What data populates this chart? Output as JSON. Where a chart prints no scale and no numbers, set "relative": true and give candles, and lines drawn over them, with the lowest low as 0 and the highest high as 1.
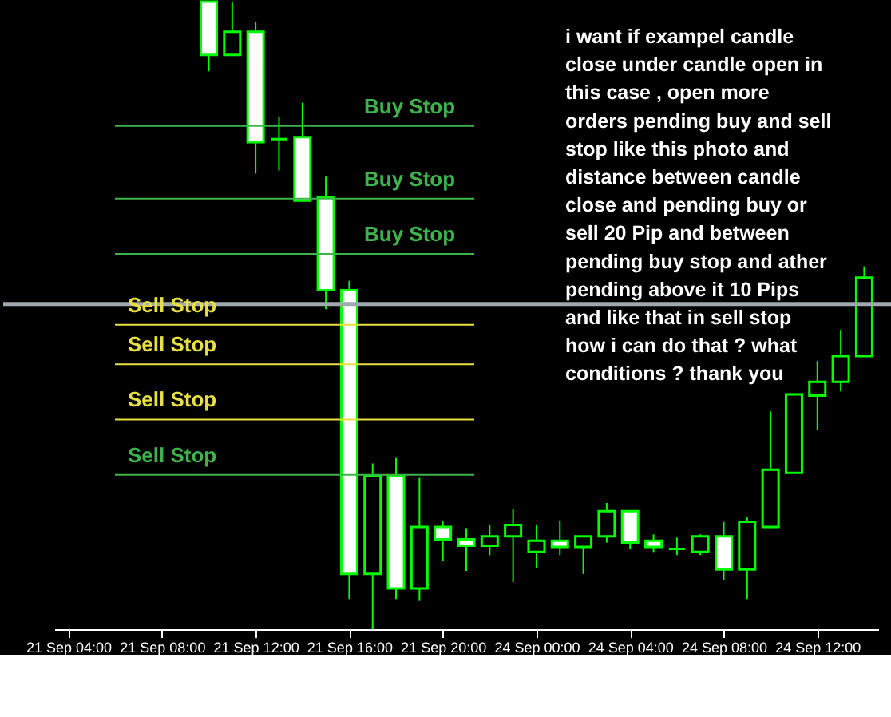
{
  "chart_data": {
    "type": "candlestick",
    "relative": true,
    "color": "#00ff00",
    "categories": [
      "21 Sep 04:00",
      null,
      null,
      null,
      "21 Sep 08:00",
      null,
      null,
      null,
      "21 Sep 12:00",
      null,
      null,
      null,
      "21 Sep 16:00",
      null,
      null,
      null,
      "21 Sep 20:00",
      null,
      null,
      null,
      "24 Sep 00:00",
      null,
      null,
      null,
      "24 Sep 04:00",
      null,
      null,
      null,
      "24 Sep 08:00",
      null,
      null,
      null,
      "24 Sep 12:00",
      null,
      null
    ],
    "ohlc": [
      null,
      null,
      null,
      null,
      null,
      null,
      [
        1.0,
        1.0,
        0.889,
        0.915
      ],
      [
        0.915,
        1.0,
        0.915,
        0.952
      ],
      [
        0.952,
        0.967,
        0.726,
        0.776
      ],
      [
        0.781,
        0.817,
        0.731,
        0.781
      ],
      [
        0.784,
        0.839,
        0.683,
        0.683
      ],
      [
        0.688,
        0.721,
        0.51,
        0.54
      ],
      [
        0.54,
        0.555,
        0.048,
        0.088
      ],
      [
        0.088,
        0.264,
        0.0,
        0.244
      ],
      [
        0.244,
        0.274,
        0.048,
        0.065
      ],
      [
        0.065,
        0.241,
        0.045,
        0.163
      ],
      [
        0.163,
        0.173,
        0.108,
        0.143
      ],
      [
        0.143,
        0.161,
        0.093,
        0.133
      ],
      [
        0.133,
        0.166,
        0.118,
        0.148
      ],
      [
        0.148,
        0.191,
        0.075,
        0.166
      ],
      [
        0.123,
        0.166,
        0.098,
        0.141
      ],
      [
        0.141,
        0.173,
        0.118,
        0.131
      ],
      [
        0.131,
        0.148,
        0.088,
        0.148
      ],
      [
        0.148,
        0.201,
        0.138,
        0.188
      ],
      [
        0.188,
        0.188,
        0.128,
        0.138
      ],
      [
        0.141,
        0.151,
        0.123,
        0.131
      ],
      [
        0.128,
        0.146,
        0.118,
        0.128
      ],
      [
        0.123,
        0.151,
        0.118,
        0.148
      ],
      [
        0.148,
        0.171,
        0.078,
        0.095
      ],
      [
        0.095,
        0.178,
        0.048,
        0.171
      ],
      [
        0.163,
        0.347,
        0.161,
        0.254
      ],
      [
        0.249,
        0.374,
        0.249,
        0.374
      ],
      [
        0.372,
        0.427,
        0.317,
        0.394
      ],
      [
        0.394,
        0.477,
        0.379,
        0.435
      ],
      [
        0.435,
        0.578,
        0.435,
        0.56
      ]
    ],
    "ref_lines": [
      {
        "axis": "y",
        "value": 0.802,
        "label": "Buy Stop",
        "color": "#3cb44b"
      },
      {
        "axis": "y",
        "value": 0.686,
        "label": "Buy Stop",
        "color": "#3cb44b"
      },
      {
        "axis": "y",
        "value": 0.598,
        "label": "Buy Stop",
        "color": "#3cb44b"
      },
      {
        "axis": "y",
        "value": 0.518,
        "color": "#a0a8b0"
      },
      {
        "axis": "y",
        "value": 0.485,
        "label": "Sell Stop",
        "color": "#e8e040"
      },
      {
        "axis": "y",
        "value": 0.422,
        "label": "Sell Stop",
        "color": "#e8e040"
      },
      {
        "axis": "y",
        "value": 0.334,
        "label": "Sell Stop",
        "color": "#e8e040"
      },
      {
        "axis": "y",
        "value": 0.246,
        "label": "Sell Stop",
        "color": "#3cb44b"
      }
    ],
    "annotations": [
      "i want if exampel candle",
      "close under candle open in",
      "this case , open more",
      "orders pending buy and sell",
      "stop  like this photo and",
      "distance between candle",
      "close and pending buy or",
      "sell  20 Pip and between",
      "pending buy stop and ather",
      "pending above it 10 Pips",
      "and like that in sell stop",
      "how i can do that ? what",
      "conditions ? thank you"
    ],
    "grid": false,
    "legend": false
  }
}
